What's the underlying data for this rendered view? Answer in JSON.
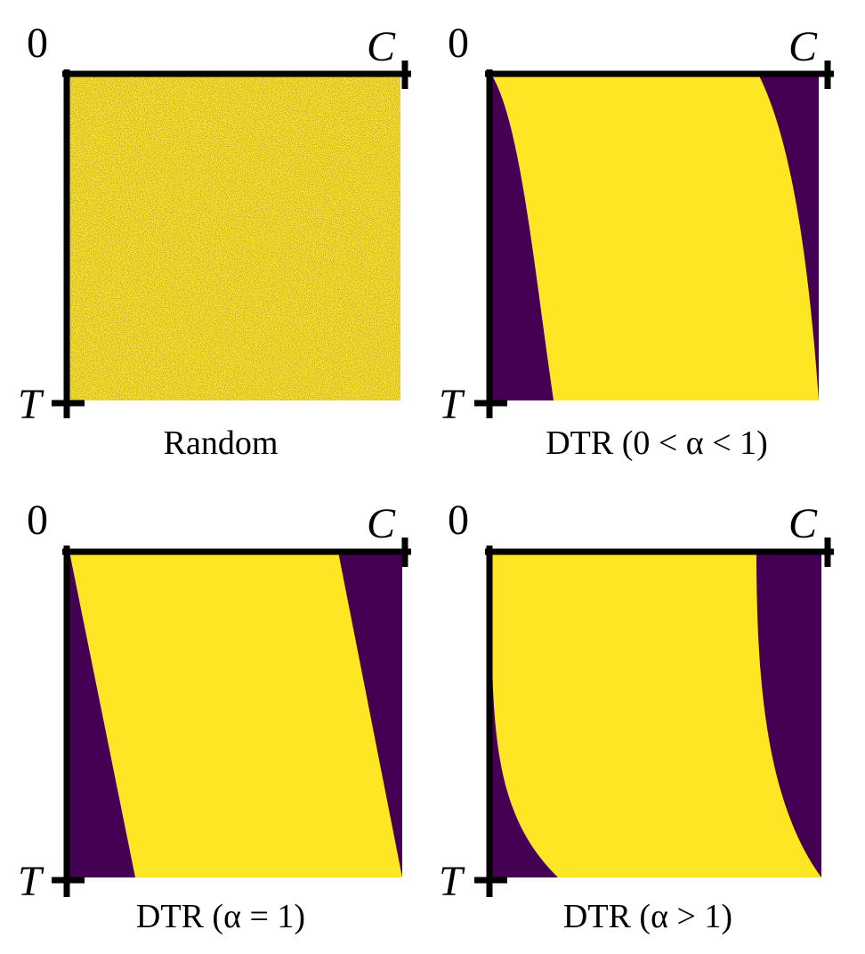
{
  "colors": {
    "yellow": "#fde725",
    "purple": "#440154",
    "axis": "#000000"
  },
  "panels": [
    {
      "id": "random",
      "caption": "Random",
      "origin_label": "0",
      "x_end_label": "C",
      "y_end_label": "T"
    },
    {
      "id": "dtr-lt1",
      "caption": "DTR (0 < α < 1)",
      "origin_label": "0",
      "x_end_label": "C",
      "y_end_label": "T"
    },
    {
      "id": "dtr-eq1",
      "caption": "DTR (α = 1)",
      "origin_label": "0",
      "x_end_label": "C",
      "y_end_label": "T"
    },
    {
      "id": "dtr-gt1",
      "caption": "DTR (α > 1)",
      "origin_label": "0",
      "x_end_label": "C",
      "y_end_label": "T"
    }
  ]
}
